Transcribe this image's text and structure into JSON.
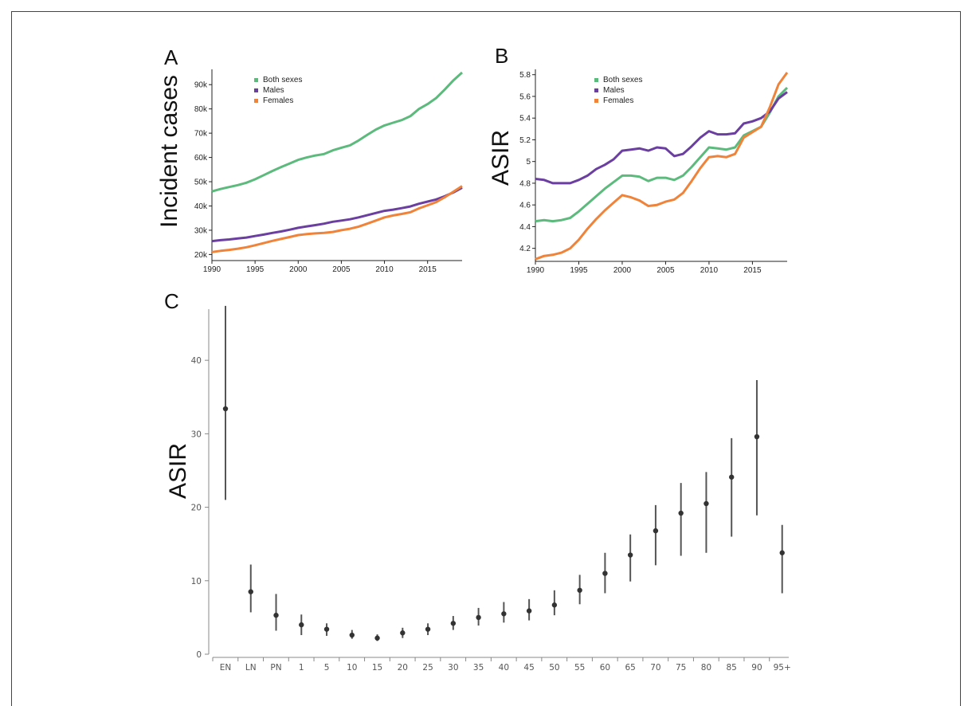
{
  "panels": {
    "A": {
      "letter": "A",
      "ylabel": "Incident cases",
      "legend": [
        "Both sexes",
        "Males",
        "Females"
      ],
      "x_ticks": [
        "1990",
        "1995",
        "2000",
        "2005",
        "2010",
        "2015"
      ],
      "y_ticks": [
        "20k",
        "30k",
        "40k",
        "50k",
        "60k",
        "70k",
        "80k",
        "90k"
      ]
    },
    "B": {
      "letter": "B",
      "ylabel": "ASIR",
      "legend": [
        "Both sexes",
        "Males",
        "Females"
      ],
      "x_ticks": [
        "1990",
        "1995",
        "2000",
        "2005",
        "2010",
        "2015"
      ],
      "y_ticks": [
        "4.2",
        "4.4",
        "4.6",
        "4.8",
        "5",
        "5.2",
        "5.4",
        "5.6",
        "5.8"
      ]
    },
    "C": {
      "letter": "C",
      "ylabel": "ASIR",
      "x_ticks": [
        "EN",
        "LN",
        "PN",
        "1",
        "5",
        "10",
        "15",
        "20",
        "25",
        "30",
        "35",
        "40",
        "45",
        "50",
        "55",
        "60",
        "65",
        "70",
        "75",
        "80",
        "85",
        "90",
        "95+"
      ],
      "y_ticks": [
        "0",
        "10",
        "20",
        "30",
        "40"
      ]
    }
  },
  "colors": {
    "both_sexes": "#5dba7d",
    "males": "#6b3fa0",
    "females": "#f0833a",
    "points": "#333333"
  },
  "chart_data": [
    {
      "type": "line",
      "ylabel": "Incident cases",
      "xlim": [
        1990,
        2019
      ],
      "ylim": [
        17500,
        95000
      ],
      "grid": false,
      "legend_position": "top-left",
      "x": [
        1990,
        1991,
        1992,
        1993,
        1994,
        1995,
        1996,
        1997,
        1998,
        1999,
        2000,
        2001,
        2002,
        2003,
        2004,
        2005,
        2006,
        2007,
        2008,
        2009,
        2010,
        2011,
        2012,
        2013,
        2014,
        2015,
        2016,
        2017,
        2018,
        2019
      ],
      "series": [
        {
          "name": "Both sexes",
          "values": [
            46000,
            47000,
            47800,
            48600,
            49600,
            51000,
            52700,
            54400,
            56000,
            57500,
            59000,
            60000,
            60800,
            61400,
            62900,
            64000,
            65000,
            67000,
            69300,
            71500,
            73200,
            74300,
            75400,
            77000,
            80000,
            82000,
            84500,
            88000,
            91800,
            95000
          ]
        },
        {
          "name": "Males",
          "values": [
            25500,
            25900,
            26200,
            26600,
            27000,
            27600,
            28200,
            28900,
            29500,
            30200,
            31000,
            31600,
            32100,
            32700,
            33500,
            34000,
            34500,
            35300,
            36200,
            37100,
            38000,
            38500,
            39100,
            39800,
            40900,
            41800,
            42700,
            44000,
            45600,
            47500
          ]
        },
        {
          "name": "Females",
          "values": [
            21000,
            21500,
            21900,
            22400,
            23000,
            23800,
            24700,
            25600,
            26400,
            27200,
            28000,
            28400,
            28700,
            28900,
            29300,
            30000,
            30600,
            31500,
            32700,
            34000,
            35300,
            36100,
            36700,
            37400,
            39000,
            40300,
            41600,
            43600,
            45900,
            48200
          ]
        }
      ]
    },
    {
      "type": "line",
      "ylabel": "ASIR",
      "xlim": [
        1990,
        2019
      ],
      "ylim": [
        4.08,
        5.82
      ],
      "grid": false,
      "legend_position": "top-left",
      "x": [
        1990,
        1991,
        1992,
        1993,
        1994,
        1995,
        1996,
        1997,
        1998,
        1999,
        2000,
        2001,
        2002,
        2003,
        2004,
        2005,
        2006,
        2007,
        2008,
        2009,
        2010,
        2011,
        2012,
        2013,
        2014,
        2015,
        2016,
        2017,
        2018,
        2019
      ],
      "series": [
        {
          "name": "Both sexes",
          "values": [
            4.45,
            4.46,
            4.45,
            4.46,
            4.48,
            4.54,
            4.61,
            4.68,
            4.75,
            4.81,
            4.87,
            4.87,
            4.86,
            4.82,
            4.85,
            4.85,
            4.83,
            4.87,
            4.95,
            5.04,
            5.13,
            5.12,
            5.11,
            5.13,
            5.24,
            5.28,
            5.32,
            5.45,
            5.6,
            5.68
          ]
        },
        {
          "name": "Males",
          "values": [
            4.84,
            4.83,
            4.8,
            4.8,
            4.8,
            4.83,
            4.87,
            4.93,
            4.97,
            5.02,
            5.1,
            5.11,
            5.12,
            5.1,
            5.13,
            5.12,
            5.05,
            5.07,
            5.14,
            5.22,
            5.28,
            5.25,
            5.25,
            5.26,
            5.35,
            5.37,
            5.4,
            5.46,
            5.58,
            5.64
          ]
        },
        {
          "name": "Females",
          "values": [
            4.1,
            4.13,
            4.14,
            4.16,
            4.2,
            4.28,
            4.38,
            4.47,
            4.55,
            4.62,
            4.69,
            4.67,
            4.64,
            4.59,
            4.6,
            4.63,
            4.65,
            4.71,
            4.82,
            4.94,
            5.04,
            5.05,
            5.04,
            5.07,
            5.22,
            5.27,
            5.32,
            5.5,
            5.71,
            5.82
          ]
        }
      ]
    },
    {
      "type": "scatter",
      "ylabel": "ASIR",
      "ylim": [
        0,
        47.5
      ],
      "grid": false,
      "categories": [
        "EN",
        "LN",
        "PN",
        "1",
        "5",
        "10",
        "15",
        "20",
        "25",
        "30",
        "35",
        "40",
        "45",
        "50",
        "55",
        "60",
        "65",
        "70",
        "75",
        "80",
        "85",
        "90",
        "95+"
      ],
      "values": [
        33.4,
        8.5,
        5.3,
        4.0,
        3.4,
        2.6,
        2.2,
        2.9,
        3.4,
        4.2,
        5.0,
        5.5,
        5.9,
        6.7,
        8.7,
        11.0,
        13.5,
        16.8,
        19.2,
        20.5,
        24.1,
        29.6,
        13.8
      ],
      "lower": [
        21.0,
        5.7,
        3.2,
        2.6,
        2.5,
        2.1,
        1.8,
        2.2,
        2.6,
        3.3,
        3.9,
        4.3,
        4.6,
        5.3,
        6.8,
        8.3,
        9.9,
        12.1,
        13.4,
        13.8,
        16.0,
        18.9,
        8.3
      ],
      "upper": [
        47.4,
        12.2,
        8.2,
        5.4,
        4.2,
        3.3,
        2.7,
        3.6,
        4.2,
        5.2,
        6.3,
        7.1,
        7.5,
        8.7,
        10.8,
        13.8,
        16.3,
        20.3,
        23.3,
        24.8,
        29.4,
        37.3,
        17.6
      ]
    }
  ]
}
